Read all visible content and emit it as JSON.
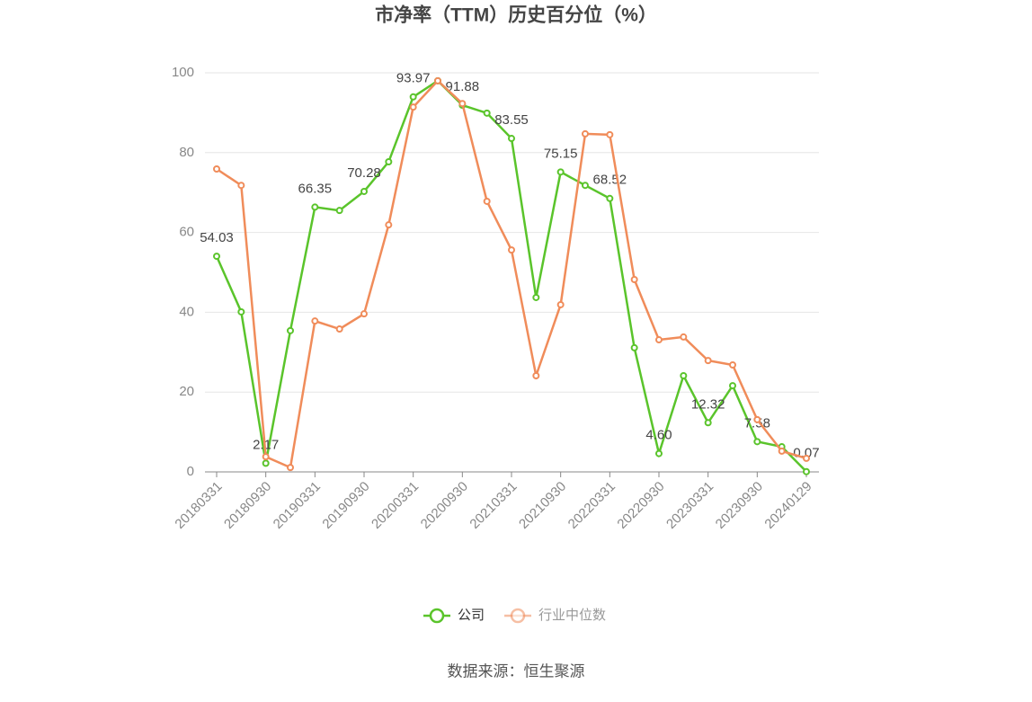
{
  "chart_data": {
    "type": "line",
    "title": "市净率（TTM）历史百分位（%）",
    "source": "数据来源：恒生聚源",
    "categories": [
      "20180331",
      null,
      "20180930",
      null,
      "20190331",
      null,
      "20190930",
      null,
      "20200331",
      null,
      "20200930",
      null,
      "20210331",
      null,
      "20210930",
      null,
      "20220331",
      null,
      "20220930",
      null,
      "20230331",
      null,
      "20230930",
      null,
      "20240129"
    ],
    "series": [
      {
        "name": "公司",
        "color": "#5ac42b",
        "values": [
          54.03,
          40.1,
          2.17,
          35.4,
          66.35,
          65.5,
          70.28,
          77.7,
          93.97,
          98.0,
          91.88,
          89.9,
          83.55,
          43.7,
          75.15,
          71.8,
          68.52,
          31.1,
          4.6,
          24.1,
          12.32,
          21.6,
          7.58,
          6.3,
          0.07
        ],
        "value_labels": [
          "54.03",
          null,
          "2.17",
          null,
          "66.35",
          null,
          "70.28",
          null,
          "93.97",
          null,
          "91.88",
          null,
          "83.55",
          null,
          "75.15",
          null,
          "68.52",
          null,
          "4.60",
          null,
          "12.32",
          null,
          "7.58",
          null,
          "0.07"
        ]
      },
      {
        "name": "行业中位数",
        "color": "#f08c5a",
        "values": [
          75.9,
          71.8,
          3.8,
          1.1,
          37.8,
          35.8,
          39.6,
          61.9,
          91.4,
          98.0,
          92.3,
          67.8,
          55.6,
          24.1,
          41.9,
          84.7,
          84.5,
          48.2,
          33.1,
          33.8,
          27.9,
          26.8,
          13.1,
          5.2,
          3.4
        ]
      }
    ],
    "ylim": [
      0,
      100
    ],
    "yticks": [
      0,
      20,
      40,
      60,
      80,
      100
    ],
    "grid": true,
    "legend": "bottom"
  }
}
